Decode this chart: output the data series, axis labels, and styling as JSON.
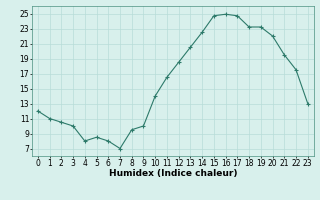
{
  "x": [
    0,
    1,
    2,
    3,
    4,
    5,
    6,
    7,
    8,
    9,
    10,
    11,
    12,
    13,
    14,
    15,
    16,
    17,
    18,
    19,
    20,
    21,
    22,
    23
  ],
  "y": [
    12,
    11,
    10.5,
    10,
    8,
    8.5,
    8,
    7,
    9.5,
    10,
    14,
    16.5,
    18.5,
    20.5,
    22.5,
    24.7,
    24.9,
    24.7,
    23.2,
    23.2,
    22,
    19.5,
    17.5,
    13
  ],
  "line_color": "#2d7a6a",
  "marker_color": "#2d7a6a",
  "bg_color": "#d8f0ec",
  "grid_color": "#b8ddd8",
  "xlabel": "Humidex (Indice chaleur)",
  "xlim": [
    -0.5,
    23.5
  ],
  "ylim": [
    6,
    26
  ],
  "yticks": [
    7,
    9,
    11,
    13,
    15,
    17,
    19,
    21,
    23,
    25
  ],
  "xticks": [
    0,
    1,
    2,
    3,
    4,
    5,
    6,
    7,
    8,
    9,
    10,
    11,
    12,
    13,
    14,
    15,
    16,
    17,
    18,
    19,
    20,
    21,
    22,
    23
  ],
  "label_fontsize": 6.5,
  "tick_fontsize": 5.5
}
